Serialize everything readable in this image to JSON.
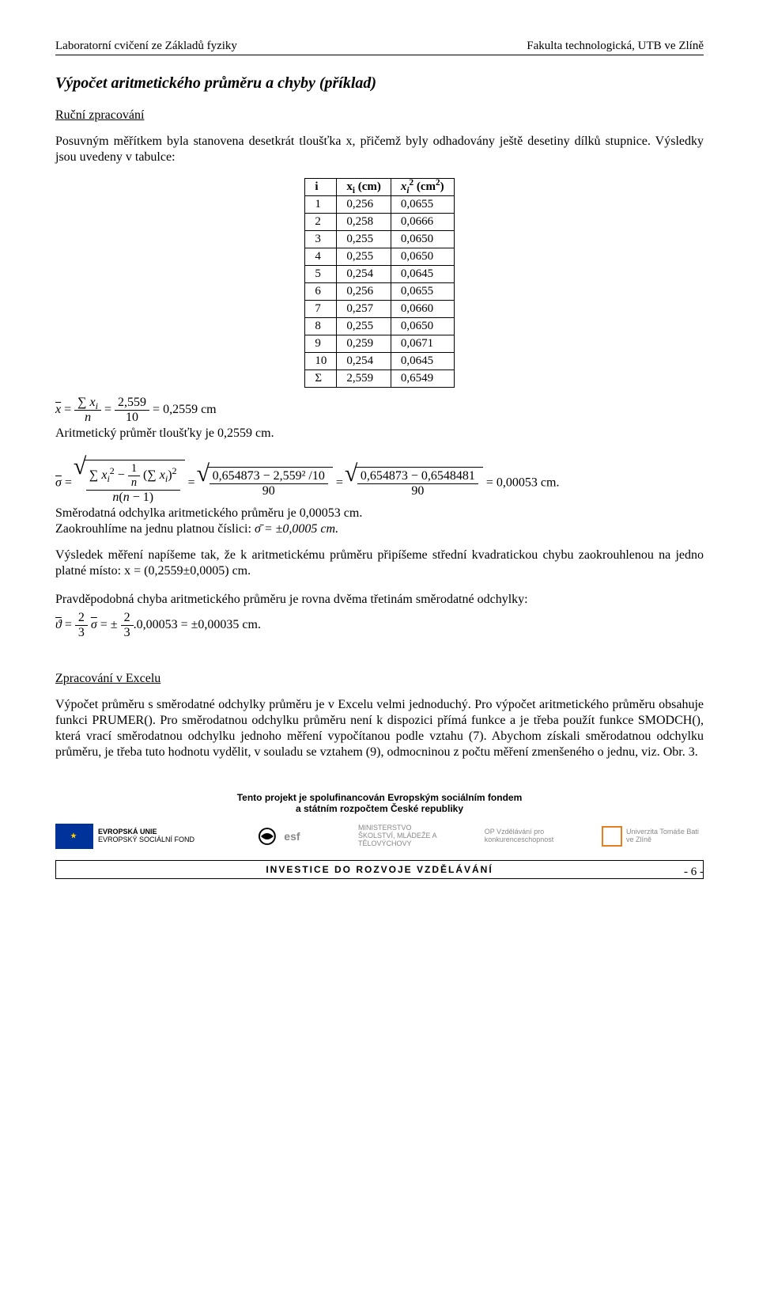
{
  "header": {
    "left": "Laboratorní cvičení ze Základů fyziky",
    "right": "Fakulta technologická, UTB ve Zlíně"
  },
  "title": "Výpočet aritmetického průměru a chyby (příklad)",
  "section1_head": "Ruční zpracování",
  "section1_para": "Posuvným měřítkem byla stanovena desetkrát tloušťka x, přičemž byly odhadovány ještě desetiny dílků stupnice. Výsledky jsou uvedeny v tabulce:",
  "table": {
    "col_i": "i",
    "col_xi": "xᵢ (cm)",
    "col_xi2": "xᵢ² (cm²)",
    "rows": [
      {
        "i": "1",
        "x": "0,256",
        "x2": "0,0655"
      },
      {
        "i": "2",
        "x": "0,258",
        "x2": "0,0666"
      },
      {
        "i": "3",
        "x": "0,255",
        "x2": "0,0650"
      },
      {
        "i": "4",
        "x": "0,255",
        "x2": "0,0650"
      },
      {
        "i": "5",
        "x": "0,254",
        "x2": "0,0645"
      },
      {
        "i": "6",
        "x": "0,256",
        "x2": "0,0655"
      },
      {
        "i": "7",
        "x": "0,257",
        "x2": "0,0660"
      },
      {
        "i": "8",
        "x": "0,255",
        "x2": "0,0650"
      },
      {
        "i": "9",
        "x": "0,259",
        "x2": "0,0671"
      },
      {
        "i": "10",
        "x": "0,254",
        "x2": "0,0645"
      }
    ],
    "sum_label": "Σ",
    "sum_x": "2,559",
    "sum_x2": "0,6549"
  },
  "mean": {
    "sum": "2,559",
    "n": "10",
    "value": "0,2559",
    "unit": "cm",
    "statement": "Aritmetický průměr tloušťky je 0,2559 cm."
  },
  "sigma": {
    "inner1": "0,654873 − 2,559² /10",
    "den1": "90",
    "inner2": "0,654873 − 0,6548481",
    "den2": "90",
    "value": "0,00053",
    "unit": "cm.",
    "statement": "Směrodatná odchylka aritmetického průměru je 0,00053 cm.",
    "round": "Zaokrouhlíme na jednu platnou číslici:",
    "round_value": "σ̄ = ±0,0005 cm."
  },
  "result_para": "Výsledek měření napíšeme tak, že k aritmetickému průměru připíšeme střední kvadratickou chybu zaokrouhlenou na jedno platné místo:   x = (0,2559±0,0005) cm.",
  "prob_err": {
    "line": "Pravděpodobná chyba aritmetického průměru je rovna dvěma třetinám směrodatné odchylky:",
    "value_in": "0,00053",
    "value_out": "±0,00035",
    "unit": "cm."
  },
  "section2_head": "Zpracování v Excelu",
  "section2_para": "Výpočet průměru s směrodatné odchylky průměru je v Excelu velmi jednoduchý. Pro výpočet aritmetického průměru obsahuje funkci PRUMER(). Pro směrodatnou odchylku průměru není k dispozici přímá funkce a je třeba použít funkce SMODCH(), která vrací směrodatnou odchylku jednoho měření vypočítanou podle vztahu (7). Abychom získali směrodatnou odchylku průměru, je třeba tuto hodnotu vydělit, v souladu se vztahem (9), odmocninou z počtu měření zmenšeného o jednu, viz. Obr. 3.",
  "funding": {
    "line1": "Tento projekt je spolufinancován Evropským sociálním fondem",
    "line2": "a státním rozpočtem České republiky",
    "eu_label1": "EVROPSKÁ UNIE",
    "eu_label2": "EVROPSKÝ SOCIÁLNÍ FOND",
    "esf": "esf",
    "msmt": "MINISTERSTVO ŠKOLSTVÍ, MLÁDEŽE A TĚLOVÝCHOVY",
    "opvk": "OP Vzdělávání pro konkurenceschopnost",
    "utb": "Univerzita Tomáše Bati ve Zlíně",
    "invest": "INVESTICE DO ROZVOJE VZDĚLÁVÁNÍ"
  },
  "pagenum": "- 6 -"
}
